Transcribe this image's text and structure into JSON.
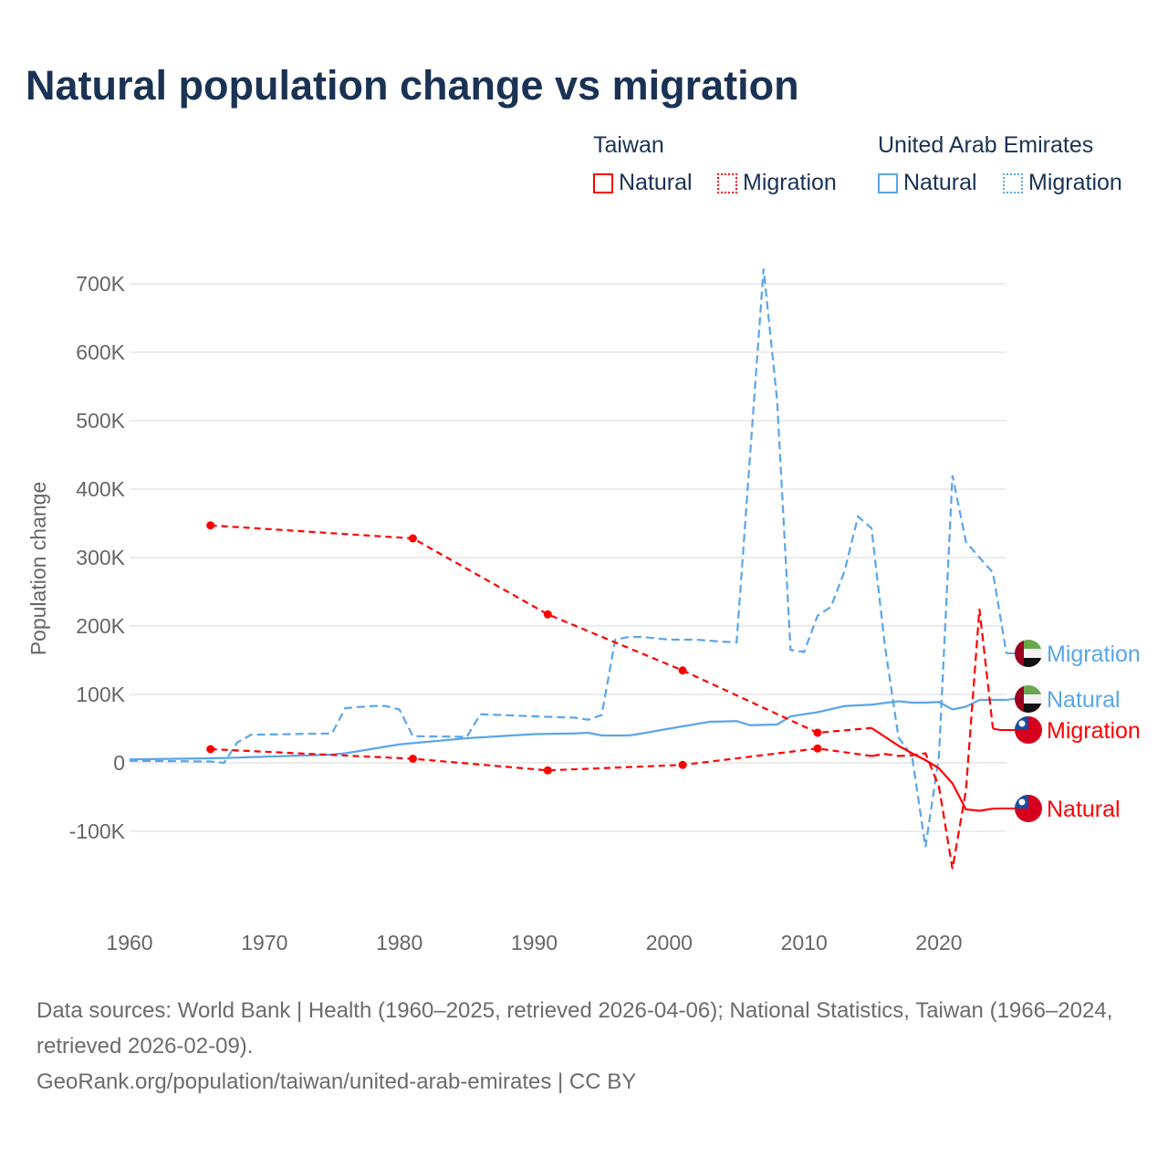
{
  "title": "Natural population change vs migration",
  "legend": {
    "groups": [
      {
        "name": "Taiwan",
        "items": [
          {
            "label": "Natural",
            "color": "#ff0000",
            "style": "solid"
          },
          {
            "label": "Migration",
            "color": "#ff0000",
            "style": "dotted"
          }
        ]
      },
      {
        "name": "United Arab Emirates",
        "items": [
          {
            "label": "Natural",
            "color": "#5aa5ea",
            "style": "solid"
          },
          {
            "label": "Migration",
            "color": "#5aa5ea",
            "style": "dotted"
          }
        ]
      }
    ]
  },
  "source": {
    "line1": "Data sources: World Bank | Health (1960–2025, retrieved 2026-04-06); National Statistics, Taiwan (1966–2024, retrieved 2026-02-09).",
    "line2": "GeoRank.org/population/taiwan/united-arab-emirates | CC BY"
  },
  "chart_data": {
    "type": "line",
    "ylabel": "Population change",
    "xlim": [
      1960,
      2025
    ],
    "ylim": [
      -170000,
      730000
    ],
    "xticks": [
      {
        "v": 1960,
        "label": "1960"
      },
      {
        "v": 1970,
        "label": "1970"
      },
      {
        "v": 1980,
        "label": "1980"
      },
      {
        "v": 1990,
        "label": "1990"
      },
      {
        "v": 2000,
        "label": "2000"
      },
      {
        "v": 2010,
        "label": "2010"
      },
      {
        "v": 2020,
        "label": "2020"
      }
    ],
    "yticks": [
      {
        "v": -100000,
        "label": "-100K"
      },
      {
        "v": 0,
        "label": "0"
      },
      {
        "v": 100000,
        "label": "100K"
      },
      {
        "v": 200000,
        "label": "200K"
      },
      {
        "v": 300000,
        "label": "300K"
      },
      {
        "v": 400000,
        "label": "400K"
      },
      {
        "v": 500000,
        "label": "500K"
      },
      {
        "v": 600000,
        "label": "600K"
      },
      {
        "v": 700000,
        "label": "700K"
      }
    ],
    "series": [
      {
        "name": "UAE Natural",
        "country": "United Arab Emirates",
        "end_label": "Natural",
        "color": "#5aa5ea",
        "kind": "natural",
        "flag": "uae",
        "points": [
          [
            1960,
            5000
          ],
          [
            1967,
            7000
          ],
          [
            1970,
            9000
          ],
          [
            1975,
            12000
          ],
          [
            1976,
            14000
          ],
          [
            1980,
            27000
          ],
          [
            1985,
            36000
          ],
          [
            1990,
            42000
          ],
          [
            1993,
            43000
          ],
          [
            1994,
            44000
          ],
          [
            1995,
            40000
          ],
          [
            1997,
            40000
          ],
          [
            1998,
            43000
          ],
          [
            2000,
            50000
          ],
          [
            2003,
            60000
          ],
          [
            2005,
            61000
          ],
          [
            2006,
            55000
          ],
          [
            2008,
            56000
          ],
          [
            2009,
            68000
          ],
          [
            2011,
            74000
          ],
          [
            2013,
            83000
          ],
          [
            2015,
            85000
          ],
          [
            2017,
            90000
          ],
          [
            2018,
            88000
          ],
          [
            2019,
            88000
          ],
          [
            2020,
            89000
          ],
          [
            2021,
            78000
          ],
          [
            2022,
            82000
          ],
          [
            2023,
            92000
          ],
          [
            2025,
            92000
          ]
        ]
      },
      {
        "name": "UAE Migration",
        "country": "United Arab Emirates",
        "end_label": "Migration",
        "color": "#5aa5ea",
        "kind": "migration",
        "flag": "uae",
        "points": [
          [
            1960,
            3000
          ],
          [
            1966,
            2000
          ],
          [
            1967,
            0
          ],
          [
            1968,
            30000
          ],
          [
            1969,
            41000
          ],
          [
            1975,
            43000
          ],
          [
            1976,
            80000
          ],
          [
            1978,
            83000
          ],
          [
            1979,
            83000
          ],
          [
            1980,
            78000
          ],
          [
            1981,
            39000
          ],
          [
            1985,
            38000
          ],
          [
            1986,
            71000
          ],
          [
            1990,
            68000
          ],
          [
            1993,
            66000
          ],
          [
            1994,
            63000
          ],
          [
            1995,
            70000
          ],
          [
            1996,
            180000
          ],
          [
            1997,
            184000
          ],
          [
            1998,
            184000
          ],
          [
            2000,
            180000
          ],
          [
            2002,
            180000
          ],
          [
            2004,
            177000
          ],
          [
            2005,
            176000
          ],
          [
            2006,
            450000
          ],
          [
            2007,
            722000
          ],
          [
            2008,
            530000
          ],
          [
            2009,
            165000
          ],
          [
            2010,
            162000
          ],
          [
            2011,
            215000
          ],
          [
            2012,
            228000
          ],
          [
            2013,
            280000
          ],
          [
            2014,
            360000
          ],
          [
            2015,
            343000
          ],
          [
            2016,
            170000
          ],
          [
            2017,
            37000
          ],
          [
            2018,
            10000
          ],
          [
            2019,
            -123000
          ],
          [
            2020,
            10000
          ],
          [
            2021,
            420000
          ],
          [
            2022,
            323000
          ],
          [
            2023,
            300000
          ],
          [
            2024,
            278000
          ],
          [
            2025,
            160000
          ]
        ]
      },
      {
        "name": "Taiwan Natural",
        "country": "Taiwan",
        "end_label": "Natural",
        "color": "#ff0000",
        "kind": "natural",
        "flag": "tw",
        "sparse": [
          [
            1966,
            347000
          ],
          [
            1981,
            328000
          ],
          [
            1991,
            217000
          ],
          [
            2001,
            135000
          ],
          [
            2011,
            44000
          ],
          [
            2015,
            51000
          ]
        ],
        "points": [
          [
            2015,
            51000
          ],
          [
            2016,
            38000
          ],
          [
            2017,
            25000
          ],
          [
            2018,
            14000
          ],
          [
            2019,
            4000
          ],
          [
            2020,
            -8000
          ],
          [
            2021,
            -30000
          ],
          [
            2022,
            -68000
          ],
          [
            2023,
            -70000
          ],
          [
            2024,
            -67000
          ]
        ]
      },
      {
        "name": "Taiwan Migration",
        "country": "Taiwan",
        "end_label": "Migration",
        "color": "#ff0000",
        "kind": "migration",
        "flag": "tw",
        "sparse": [
          [
            1966,
            20000
          ],
          [
            1981,
            6000
          ],
          [
            1991,
            -11000
          ],
          [
            2001,
            -3000
          ],
          [
            2011,
            21000
          ],
          [
            2015,
            10000
          ]
        ],
        "points": [
          [
            2015,
            10000
          ],
          [
            2016,
            13000
          ],
          [
            2017,
            10000
          ],
          [
            2018,
            11000
          ],
          [
            2019,
            14000
          ],
          [
            2020,
            -35000
          ],
          [
            2021,
            -155000
          ],
          [
            2022,
            -40000
          ],
          [
            2023,
            225000
          ],
          [
            2024,
            50000
          ]
        ]
      }
    ]
  }
}
